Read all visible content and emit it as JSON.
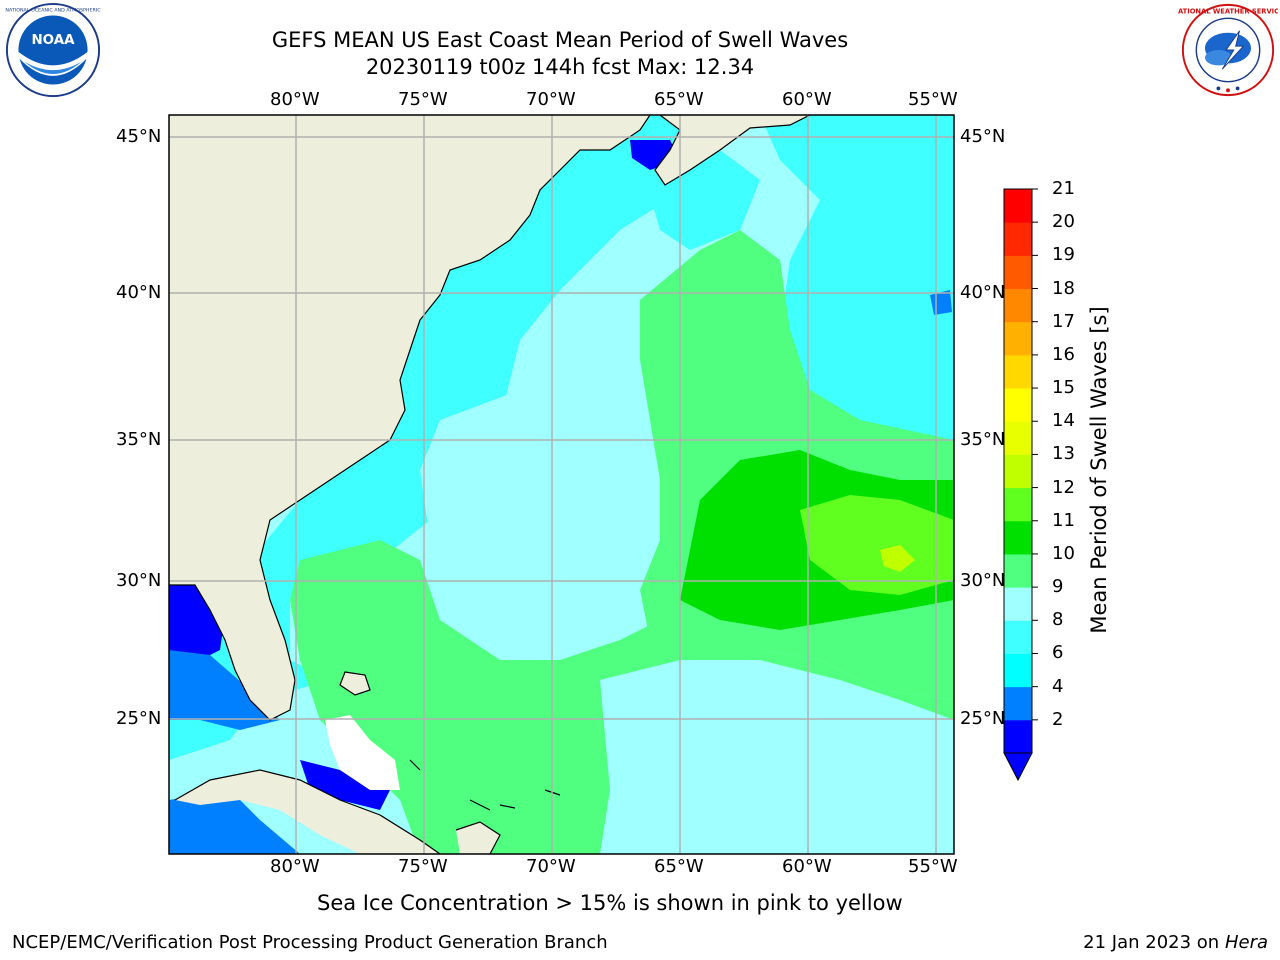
{
  "title": {
    "line1": "GEFS MEAN US East Coast Mean Period of Swell Waves",
    "line2": "20230119 t00z 144h fcst   Max: 12.34"
  },
  "map": {
    "lon_ticks": [
      "80°W",
      "75°W",
      "70°W",
      "65°W",
      "60°W",
      "55°W"
    ],
    "lat_ticks": [
      "45°N",
      "40°N",
      "35°N",
      "30°N",
      "25°N"
    ],
    "colors": {
      "land": "#eeeedc",
      "coast": "#000000",
      "grid": "#b0b0b0"
    }
  },
  "colorbar": {
    "label": "Mean Period of Swell Waves [s]",
    "ticks": [
      "21",
      "20",
      "19",
      "18",
      "17",
      "16",
      "15",
      "14",
      "13",
      "12",
      "11",
      "10",
      "9",
      "8",
      "6",
      "4",
      "2"
    ],
    "colors": [
      "#0000ff",
      "#0080ff",
      "#00ffff",
      "#40ffff",
      "#a0ffff",
      "#50ff80",
      "#00e000",
      "#60ff20",
      "#c0ff00",
      "#e8ff00",
      "#ffff00",
      "#ffd800",
      "#ffb000",
      "#ff8800",
      "#ff5a00",
      "#ff2800",
      "#ff0000"
    ]
  },
  "sea_ice_note": "Sea Ice Concentration > 15% is shown in pink to yellow",
  "footer": {
    "left": "NCEP/EMC/Verification Post Processing Product Generation Branch",
    "right_date": "21 Jan 2023 on ",
    "right_host": "Hera"
  },
  "logos": {
    "noaa_text": "NOAA",
    "nws_text": "NATIONAL WEATHER SERVICE"
  }
}
